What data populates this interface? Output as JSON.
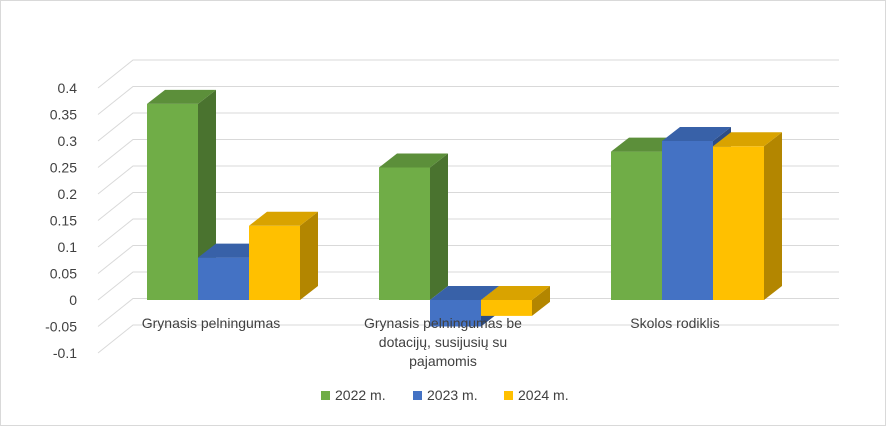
{
  "chart_data": {
    "type": "bar",
    "style": "3d-clustered",
    "categories": [
      [
        "Grynasis pelningumas"
      ],
      [
        "Grynasis pelningumas be",
        "dotacijų, susijusių su",
        "pajamomis"
      ],
      [
        "Skolos rodiklis"
      ]
    ],
    "series": [
      {
        "name": "2022 m.",
        "values": [
          0.37,
          0.25,
          0.28
        ]
      },
      {
        "name": "2023 m.",
        "values": [
          0.08,
          -0.05,
          0.3
        ]
      },
      {
        "name": "2024 m.",
        "values": [
          0.14,
          -0.03,
          0.29
        ]
      }
    ],
    "y_ticks": [
      "0.4",
      "0.35",
      "0.3",
      "0.25",
      "0.2",
      "0.15",
      "0.1",
      "0.05",
      "0",
      "-0.05",
      "-0.1"
    ],
    "ylim": [
      -0.1,
      0.4
    ],
    "grid": true,
    "legend_position": "bottom"
  },
  "colors": {
    "series_front": [
      "#70ad47",
      "#4472c4",
      "#ffc000"
    ],
    "series_side": [
      "#4a732f",
      "#2d4d86",
      "#b38600"
    ],
    "series_top": [
      "#5c8f3a",
      "#3861a8",
      "#d9a300"
    ],
    "grid": "#d9d9d9",
    "text": "#404040"
  }
}
